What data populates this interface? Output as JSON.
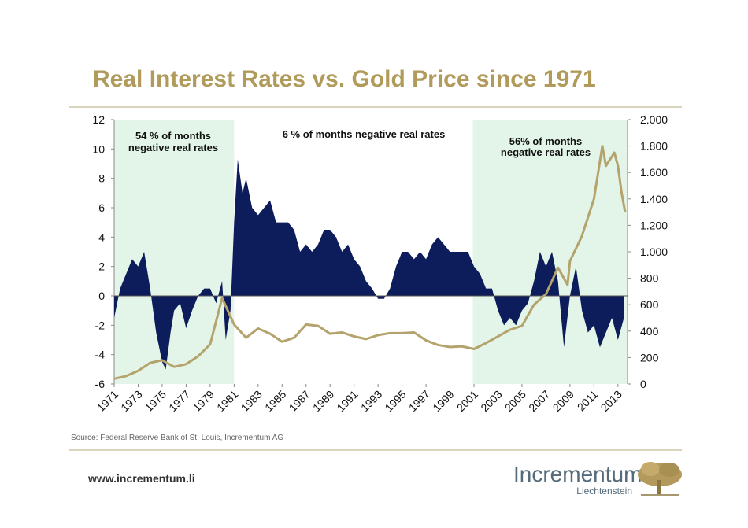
{
  "chart_data": {
    "type": "area-line",
    "title": "Real Interest Rates vs. Gold Price since 1971",
    "source": "Source: Federal Reserve Bank of St. Louis, Incrementum AG",
    "annotations": [
      "54 % of months",
      "negative real rates",
      "6 % of months negative real rates",
      "56% of months",
      "negative real rates"
    ],
    "highlights": [
      [
        1971,
        1981
      ],
      [
        2000.9,
        2013.8
      ]
    ],
    "highlight_color": "#e3f5e8",
    "xlim": [
      1971,
      2013.8
    ],
    "xticks": [
      1971,
      1973,
      1975,
      1977,
      1979,
      1981,
      1983,
      1985,
      1987,
      1989,
      1991,
      1993,
      1995,
      1997,
      1999,
      2001,
      2003,
      2005,
      2007,
      2009,
      2011,
      2013
    ],
    "ylim": [
      -6,
      12
    ],
    "yticks": [
      12,
      10,
      8,
      6,
      4,
      2,
      0,
      -2,
      -4,
      -6
    ],
    "y2lim": [
      0,
      2000
    ],
    "y2ticks": [
      {
        "value": 2000,
        "label": "2.000"
      },
      {
        "value": 1800,
        "label": "1.800"
      },
      {
        "value": 1600,
        "label": "1.600"
      },
      {
        "value": 1400,
        "label": "1.400"
      },
      {
        "value": 1200,
        "label": "1.200"
      },
      {
        "value": 1000,
        "label": "1.000"
      },
      800,
      600,
      400,
      200,
      0
    ],
    "series": [
      {
        "type": "area",
        "color": "#0d1c5a",
        "x": [
          1971,
          1971.5,
          1972,
          1972.5,
          1973,
          1973.5,
          1974,
          1974.5,
          1975,
          1975.3,
          1975.7,
          1976,
          1976.5,
          1977,
          1977.5,
          1978,
          1978.5,
          1979,
          1979.5,
          1980,
          1980.3,
          1980.7,
          1981,
          1981.3,
          1981.7,
          1982,
          1982.5,
          1983,
          1983.5,
          1984,
          1984.5,
          1985,
          1985.5,
          1986,
          1986.5,
          1987,
          1987.5,
          1988,
          1988.5,
          1989,
          1989.5,
          1990,
          1990.5,
          1991,
          1991.5,
          1992,
          1992.5,
          1993,
          1993.5,
          1994,
          1994.5,
          1995,
          1995.5,
          1996,
          1996.5,
          1997,
          1997.5,
          1998,
          1998.5,
          1999,
          1999.5,
          2000,
          2000.5,
          2001,
          2001.5,
          2002,
          2002.5,
          2003,
          2003.5,
          2004,
          2004.5,
          2005,
          2005.5,
          2006,
          2006.5,
          2007,
          2007.5,
          2008,
          2008.5,
          2009,
          2009.5,
          2010,
          2010.5,
          2011,
          2011.5,
          2012,
          2012.5,
          2013,
          2013.5
        ],
        "values": [
          -1.5,
          0.5,
          1.5,
          2.5,
          2,
          3,
          0.5,
          -2.5,
          -4.5,
          -5,
          -2.5,
          -1,
          -0.5,
          -2.2,
          -1,
          0,
          0.5,
          0.5,
          -0.5,
          1,
          -3,
          -1,
          5,
          9.3,
          7,
          8,
          6,
          5.5,
          6,
          6.5,
          5,
          5,
          5,
          4.5,
          3,
          3.5,
          3,
          3.5,
          4.5,
          4.5,
          4,
          3,
          3.5,
          2.5,
          2,
          1,
          0.5,
          -0.2,
          -0.2,
          0.5,
          2,
          3,
          3,
          2.5,
          3,
          2.5,
          3.5,
          4,
          3.5,
          3,
          3,
          3,
          3,
          2,
          1.5,
          0.5,
          0.5,
          -1,
          -2,
          -1.5,
          -2,
          -1,
          -0.5,
          1,
          3,
          2,
          3,
          1,
          -3.5,
          0,
          2,
          -1,
          -2.5,
          -2,
          -3.5,
          -2.5,
          -1.5,
          -3,
          -1.5
        ]
      },
      {
        "type": "line",
        "axis": "y2",
        "color": "#b4a36c",
        "x": [
          1971,
          1972,
          1973,
          1974,
          1975,
          1976,
          1977,
          1978,
          1979,
          1980,
          1980.5,
          1981,
          1982,
          1983,
          1984,
          1985,
          1986,
          1987,
          1988,
          1989,
          1990,
          1991,
          1992,
          1993,
          1994,
          1995,
          1996,
          1997,
          1998,
          1999,
          2000,
          2001,
          2002,
          2003,
          2004,
          2005,
          2006,
          2007,
          2008,
          2008.8,
          2009,
          2010,
          2011,
          2011.7,
          2012,
          2012.7,
          2013,
          2013.3,
          2013.6
        ],
        "values": [
          40,
          60,
          100,
          160,
          180,
          130,
          150,
          210,
          300,
          650,
          550,
          450,
          350,
          420,
          380,
          320,
          350,
          450,
          440,
          380,
          390,
          360,
          340,
          370,
          385,
          385,
          390,
          330,
          295,
          280,
          285,
          265,
          310,
          360,
          410,
          440,
          600,
          680,
          880,
          750,
          930,
          1120,
          1400,
          1800,
          1650,
          1750,
          1650,
          1450,
          1300
        ]
      }
    ]
  },
  "footer": {
    "url": "www.incrementum.li",
    "logo": "Incrementum",
    "logo_sub": "Liechtenstein"
  }
}
